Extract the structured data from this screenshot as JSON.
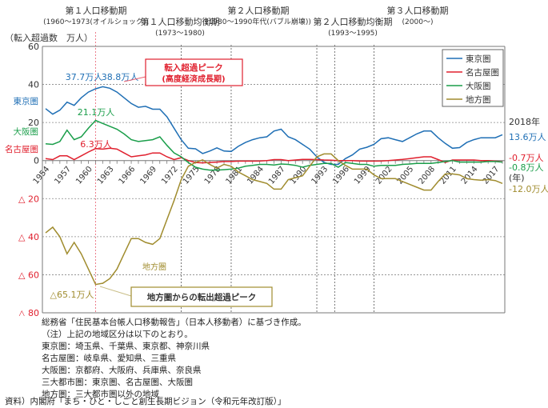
{
  "chart_data": {
    "type": "line",
    "ylabel": "（転入超過数　万人）",
    "xlabel": "(年)",
    "ylim": [
      -80,
      60
    ],
    "yticks": [
      60,
      40,
      20,
      0,
      -20,
      -40,
      -60,
      -80
    ],
    "ytick_labels": [
      "60",
      "40",
      "20",
      "0",
      "△ 20",
      "△ 40",
      "△ 60",
      "△ 80"
    ],
    "x_range": [
      1954,
      2018
    ],
    "xtick_labels": [
      "1954",
      "1957",
      "1960",
      "1963",
      "1966",
      "1969",
      "1972",
      "1975",
      "1978",
      "1981",
      "1984",
      "1987",
      "1990",
      "1993",
      "1996",
      "1999",
      "2002",
      "2005",
      "2008",
      "2011",
      "2014",
      "2017"
    ],
    "grid": true,
    "legend_position": "top-right",
    "series": [
      {
        "name": "東京圏",
        "color": "#1f6fb5",
        "side_label": "東京圏",
        "values": [
          27.3,
          24.4,
          26.5,
          30.7,
          29,
          33,
          36,
          37.7,
          38.8,
          38,
          36,
          33,
          30,
          28,
          28.5,
          27,
          27,
          23,
          17,
          11,
          6.5,
          6.2,
          3.7,
          5,
          6.7,
          5,
          4.8,
          7.5,
          9.5,
          11,
          12,
          12.5,
          15.5,
          16.5,
          12.5,
          11,
          8.5,
          6,
          2,
          -1,
          -2,
          -2,
          1,
          3,
          6,
          7,
          8.5,
          11.5,
          12,
          11,
          10,
          12,
          14,
          15.5,
          15.5,
          12,
          9,
          6.5,
          6.8,
          9.5,
          11,
          12,
          12,
          12,
          13.6
        ]
      },
      {
        "name": "名古屋圏",
        "color": "#e0202e",
        "side_label": "名古屋圏",
        "values": [
          1,
          0.5,
          2.5,
          2.5,
          0.5,
          2.5,
          4.5,
          6.3,
          6,
          6.5,
          6,
          4,
          2,
          2.5,
          3,
          4,
          4,
          2,
          0.5,
          1.5,
          0,
          -1,
          -1.2,
          -1,
          -0.8,
          -0.5,
          -0.5,
          -0.3,
          -0.3,
          -0.3,
          -0.2,
          0,
          0.5,
          0.5,
          0,
          0.3,
          0.6,
          0.6,
          0.5,
          0.3,
          0.2,
          0,
          0,
          0,
          -0.2,
          -0.3,
          -0.3,
          -0.2,
          0,
          0.3,
          0.6,
          1,
          1.5,
          2,
          2,
          0.5,
          -1,
          0.3,
          0.3,
          0.3,
          0.3,
          0,
          0,
          -0.3,
          -0.7
        ]
      },
      {
        "name": "大阪圏",
        "color": "#1a9e4a",
        "side_label": "大阪圏",
        "values": [
          8.8,
          8.5,
          10,
          16,
          11,
          12.5,
          17,
          21.1,
          19.5,
          18,
          16.5,
          14,
          11,
          10,
          10.5,
          11,
          12.5,
          8,
          4,
          2,
          -1,
          -3.5,
          -4.5,
          -5,
          -5,
          -4.8,
          -4.5,
          -4,
          -3,
          -2.5,
          -2,
          -2,
          -2.3,
          -1.8,
          -2,
          -2.5,
          -3.5,
          -2.5,
          -2,
          -1.5,
          -1.5,
          -3.5,
          -1,
          -1.5,
          -2,
          -2,
          -3,
          -2.5,
          -2.5,
          -2.5,
          -2,
          -1.8,
          -1.5,
          -1.5,
          -1.5,
          -1,
          -0.5,
          0,
          -0.8,
          -0.8,
          -0.8,
          -0.8,
          -0.5,
          -0.5,
          -0.8
        ]
      },
      {
        "name": "地方圏",
        "color": "#a08c2e",
        "side_label": "地方圏",
        "values": [
          -38,
          -35,
          -40,
          -49,
          -43,
          -49,
          -57,
          -65.1,
          -64.5,
          -62,
          -57,
          -49,
          -41,
          -41,
          -43,
          -44,
          -41,
          -31,
          -21,
          -10,
          -3,
          -1,
          0.4,
          -2,
          -4,
          -2,
          -3,
          -6,
          -8,
          -10,
          -11,
          -12,
          -15,
          -15,
          -10,
          -9,
          -8,
          -3,
          2,
          3.5,
          3.5,
          0,
          -2.5,
          -4.5,
          -4.5,
          -4.5,
          -7.5,
          -9.5,
          -9.5,
          -9.5,
          -11,
          -12.5,
          -14,
          -15.5,
          -15.5,
          -11,
          -7,
          -7,
          -7.5,
          -9.5,
          -10,
          -10.3,
          -10,
          -10.5,
          -12
        ]
      }
    ],
    "vertical_markers": [
      {
        "year": 1961,
        "style": "red-dashed"
      },
      {
        "year": 1973,
        "style": "dashed"
      },
      {
        "year": 1980,
        "style": "dashed"
      },
      {
        "year": 1992,
        "style": "dashed"
      },
      {
        "year": 1994.5,
        "style": "dashed"
      },
      {
        "year": 2000,
        "style": "dashed"
      }
    ],
    "periods": [
      {
        "title": "第１人口移動期",
        "range": "(1960～1973(オイルショック))"
      },
      {
        "title": "第１人口移動均衡期",
        "range": "(1973～1980)"
      },
      {
        "title": "第２人口移動期",
        "range": "(1980～1990年代(バブル崩壊))"
      },
      {
        "title": "第２人口移動均衡期",
        "range": "(1993～1995)"
      },
      {
        "title": "第３人口移動期",
        "range": "(2000～)"
      }
    ],
    "annotations": {
      "tokyo_1961": "37.7万人",
      "tokyo_1962": "38.8万人",
      "osaka_peak": "21.1万人",
      "nagoya_peak": "6.3万人",
      "local_peak": "△65.1万人",
      "local_label": "地方圏",
      "inflow_peak_line1": "転入超過ピーク",
      "inflow_peak_line2": "(高度経済成長期)",
      "outflow_peak": "地方圏からの転出超過ピーク",
      "end_year": "2018年",
      "end_tokyo": "13.6万人",
      "end_nagoya": "-0.7万人",
      "end_osaka": "-0.8万人",
      "end_local": "-12.0万人"
    }
  },
  "notes": [
    "総務省「住民基本台帳人口移動報告」（日本人移動者）に基づき作成。",
    "（注）上記の地域区分は以下のとおり。",
    "東京圏：埼玉県、千葉県、東京都、神奈川県",
    "名古屋圏：岐阜県、愛知県、三重県",
    "大阪圏：京都府、大阪府、兵庫県、奈良県",
    "三大都市圏：東京圏、名古屋圏、大阪圏",
    "地方圏：三大都市圏以外の地域"
  ],
  "source": "資料）内閣府「まち・ひと・しごと創生長期ビジョン（令和元年改訂版）」"
}
